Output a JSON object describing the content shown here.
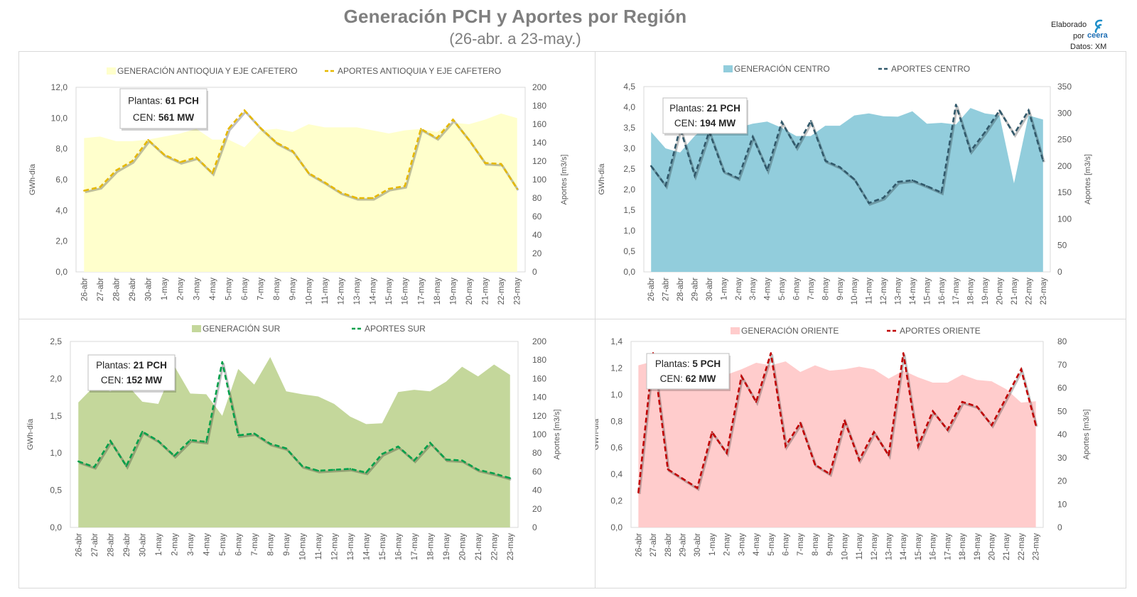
{
  "header": {
    "title": "Generación PCH y Aportes por Región",
    "subtitle": "(26-abr. a 23-may.)",
    "brand_line1": "Elaborado",
    "brand_line2": "por",
    "brand_name": "ceera",
    "source": "Datos: XM"
  },
  "colors": {
    "antioquia_fill": "#ffffcc",
    "antioquia_line": "#e6b800",
    "centro_fill": "#92cddc",
    "centro_line": "#31596b",
    "sur_fill": "#c4d79b",
    "sur_line": "#00a04a",
    "oriente_fill": "#ffcccc",
    "oriente_line": "#c00000"
  },
  "chart_data": [
    {
      "type": "area",
      "id": "antioquia",
      "legend_gen": "GENERACIÓN ANTIOQUIA Y EJE CAFETERO",
      "legend_ap": "APORTES ANTIOQUIA Y EJE CAFETERO",
      "ylabel": "GWh-día",
      "y2label": "Aportes [m3/s]",
      "ylim": [
        0,
        12
      ],
      "y_ticks": [
        "0,0",
        "2,0",
        "4,0",
        "6,0",
        "8,0",
        "10,0",
        "12,0"
      ],
      "y2lim": [
        0,
        200
      ],
      "y2_ticks": [
        "0",
        "20",
        "40",
        "60",
        "80",
        "100",
        "120",
        "140",
        "160",
        "180",
        "200"
      ],
      "box_label1": "Plantas:",
      "box_value1": "61 PCH",
      "box_label2": "CEN:",
      "box_value2": "561 MW",
      "categories": [
        "26-abr",
        "27-abr",
        "28-abr",
        "29-abr",
        "30-abr",
        "1-may",
        "2-may",
        "3-may",
        "4-may",
        "5-may",
        "6-may",
        "7-may",
        "8-may",
        "9-may",
        "10-may",
        "11-may",
        "12-may",
        "13-may",
        "14-may",
        "15-may",
        "16-may",
        "17-may",
        "18-may",
        "19-may",
        "20-may",
        "21-may",
        "22-may",
        "23-may"
      ],
      "generation": [
        8.7,
        8.8,
        8.5,
        8.5,
        8.6,
        8.8,
        9.0,
        9.3,
        8.6,
        8.6,
        8.1,
        9.2,
        9.3,
        9.1,
        9.6,
        9.4,
        9.4,
        9.4,
        9.2,
        9.0,
        9.2,
        9.3,
        9.1,
        9.7,
        9.6,
        9.9,
        10.3,
        10.0
      ],
      "aportes": [
        88,
        92,
        110,
        120,
        143,
        127,
        119,
        124,
        107,
        155,
        175,
        156,
        140,
        131,
        107,
        97,
        86,
        80,
        80,
        90,
        93,
        155,
        145,
        165,
        143,
        118,
        117,
        90
      ]
    },
    {
      "type": "area",
      "id": "centro",
      "legend_gen": "GENERACIÓN CENTRO",
      "legend_ap": "APORTES CENTRO",
      "ylabel": "GWh-día",
      "y2label": "Aportes [m3/s]",
      "ylim": [
        0,
        4.5
      ],
      "y_ticks": [
        "0,0",
        "0,5",
        "1,0",
        "1,5",
        "2,0",
        "2,5",
        "3,0",
        "3,5",
        "4,0",
        "4,5"
      ],
      "y2lim": [
        0,
        350
      ],
      "y2_ticks": [
        "0",
        "50",
        "100",
        "150",
        "200",
        "250",
        "300",
        "350"
      ],
      "box_label1": "Plantas:",
      "box_value1": "21 PCH",
      "box_label2": "CEN:",
      "box_value2": "194 MW",
      "categories": [
        "26-abr",
        "27-abr",
        "28-abr",
        "29-abr",
        "30-abr",
        "1-may",
        "2-may",
        "3-may",
        "4-may",
        "5-may",
        "6-may",
        "7-may",
        "8-may",
        "9-may",
        "10-may",
        "11-may",
        "12-may",
        "13-may",
        "14-may",
        "15-may",
        "16-may",
        "17-may",
        "18-may",
        "19-may",
        "20-may",
        "21-may",
        "22-may",
        "23-may"
      ],
      "generation": [
        3.4,
        3.0,
        2.9,
        3.3,
        3.6,
        3.6,
        3.5,
        3.6,
        3.65,
        3.5,
        3.3,
        3.3,
        3.55,
        3.55,
        3.8,
        3.85,
        3.78,
        3.77,
        3.9,
        3.6,
        3.62,
        3.58,
        3.98,
        3.85,
        3.8,
        2.15,
        3.8,
        3.7
      ],
      "aportes": [
        200,
        163,
        272,
        182,
        265,
        190,
        177,
        255,
        192,
        283,
        235,
        285,
        210,
        198,
        175,
        130,
        140,
        170,
        173,
        162,
        150,
        316,
        228,
        264,
        305,
        260,
        305,
        210
      ]
    },
    {
      "type": "area",
      "id": "sur",
      "legend_gen": "GENERACIÓN SUR",
      "legend_ap": "APORTES SUR",
      "ylabel": "GWh-día",
      "y2label": "Aportes [m3/s]",
      "ylim": [
        0,
        2.5
      ],
      "y_ticks": [
        "0,0",
        "0,5",
        "1,0",
        "1,5",
        "2,0",
        "2,5"
      ],
      "y2lim": [
        0,
        200
      ],
      "y2_ticks": [
        "0",
        "20",
        "40",
        "60",
        "80",
        "100",
        "120",
        "140",
        "160",
        "180",
        "200"
      ],
      "box_label1": "Plantas:",
      "box_value1": "21 PCH",
      "box_label2": "CEN:",
      "box_value2": "152 MW",
      "categories": [
        "26-abr",
        "27-abr",
        "28-abr",
        "29-abr",
        "30-abr",
        "1-may",
        "2-may",
        "3-may",
        "4-may",
        "5-may",
        "6-may",
        "7-may",
        "8-may",
        "9-may",
        "10-may",
        "11-may",
        "12-may",
        "13-may",
        "14-may",
        "15-may",
        "16-may",
        "17-may",
        "18-may",
        "19-may",
        "20-may",
        "21-may",
        "22-may",
        "23-may"
      ],
      "generation": [
        1.68,
        1.9,
        1.83,
        1.93,
        1.69,
        1.66,
        2.17,
        1.8,
        1.79,
        1.5,
        2.13,
        1.92,
        2.29,
        1.83,
        1.79,
        1.76,
        1.66,
        1.49,
        1.39,
        1.4,
        1.82,
        1.85,
        1.83,
        1.96,
        2.16,
        2.03,
        2.19,
        2.05
      ],
      "aportes": [
        71,
        65,
        93,
        66,
        103,
        93,
        77,
        94,
        92,
        178,
        99,
        101,
        90,
        85,
        66,
        61,
        62,
        63,
        59,
        79,
        87,
        72,
        91,
        73,
        72,
        62,
        58,
        53
      ]
    },
    {
      "type": "area",
      "id": "oriente",
      "legend_gen": "GENERACIÓN ORIENTE",
      "legend_ap": "APORTES ORIENTE",
      "ylabel": "GWh-día",
      "y2label": "Aportes [m3/s]",
      "ylim": [
        0,
        1.4
      ],
      "y_ticks": [
        "0,0",
        "0,2",
        "0,4",
        "0,6",
        "0,8",
        "1,0",
        "1,2",
        "1,4"
      ],
      "y2lim": [
        0,
        80
      ],
      "y2_ticks": [
        "0",
        "10",
        "20",
        "30",
        "40",
        "50",
        "60",
        "70",
        "80"
      ],
      "box_label1": "Plantas:",
      "box_value1": "5 PCH",
      "box_label2": "CEN:",
      "box_value2": "62 MW",
      "categories": [
        "26-abr",
        "27-abr",
        "28-abr",
        "29-abr",
        "30-abr",
        "1-may",
        "2-may",
        "3-may",
        "4-may",
        "5-may",
        "6-may",
        "7-may",
        "8-may",
        "9-may",
        "10-may",
        "11-may",
        "12-may",
        "13-may",
        "14-may",
        "15-may",
        "16-may",
        "17-may",
        "18-may",
        "19-may",
        "20-may",
        "21-may",
        "22-may",
        "23-may"
      ],
      "generation": [
        1.22,
        1.25,
        1.22,
        1.18,
        1.12,
        1.13,
        1.15,
        1.19,
        1.24,
        1.22,
        1.25,
        1.17,
        1.22,
        1.18,
        1.19,
        1.21,
        1.19,
        1.12,
        1.18,
        1.13,
        1.09,
        1.09,
        1.15,
        1.11,
        1.1,
        1.04,
        0.94,
        0.95
      ],
      "aportes": [
        15,
        75,
        25,
        21,
        17,
        41,
        32,
        65,
        54,
        75,
        35,
        45,
        27,
        23,
        46,
        29,
        41,
        31,
        75,
        35,
        50,
        42,
        54,
        52,
        44,
        56,
        68,
        44
      ]
    }
  ]
}
